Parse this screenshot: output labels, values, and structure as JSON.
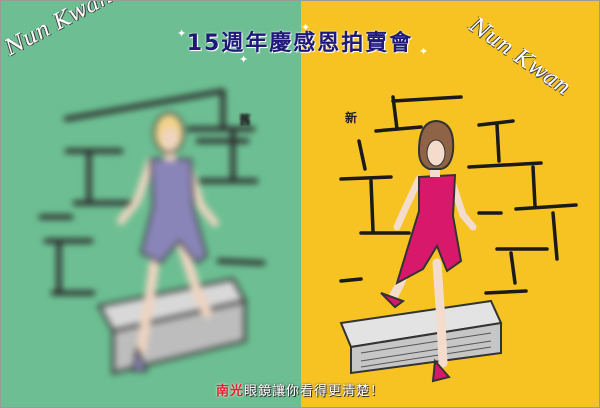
{
  "title": "15週年慶感恩拍賣會",
  "brand_left": "Nun Kwan",
  "brand_right": "Nun Kwan",
  "tag_old": "舊",
  "tag_new": "新",
  "footer": {
    "brand": "南光",
    "message": "眼鏡讓你看得更清楚！"
  },
  "colors": {
    "left_panel": "#6dbf93",
    "right_panel": "#f6c323",
    "title": "#1f1a7a",
    "dress_left": "#8a85b8",
    "dress_right": "#d8186a",
    "footer_brand": "#e81c2e"
  }
}
